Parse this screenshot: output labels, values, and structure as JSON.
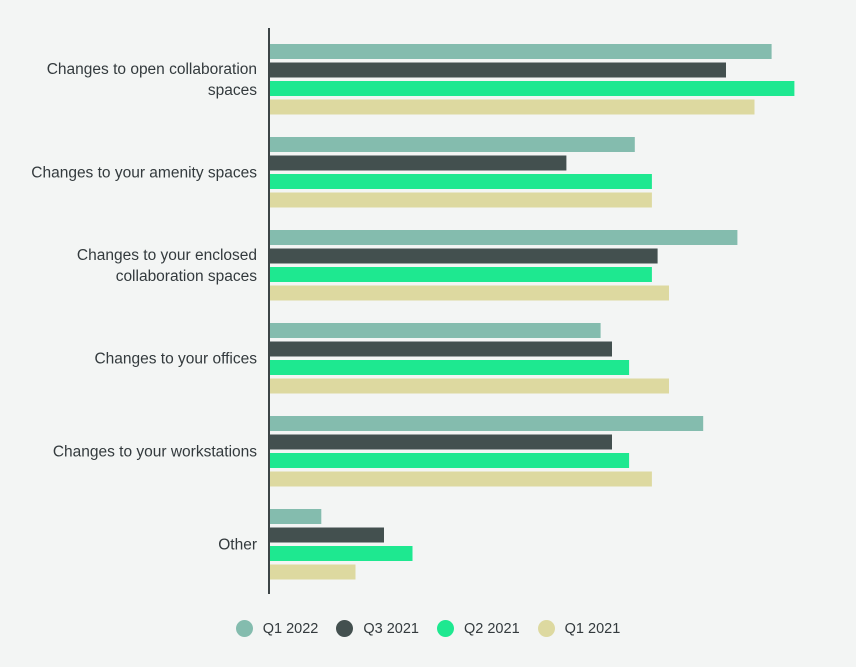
{
  "chart_data": {
    "type": "bar",
    "orientation": "horizontal",
    "categories": [
      [
        "Changes to open collaboration",
        "spaces"
      ],
      [
        "Changes to your amenity spaces"
      ],
      [
        "Changes to your enclosed",
        "collaboration spaces"
      ],
      [
        "Changes to your offices"
      ],
      [
        "Changes to your workstations"
      ],
      [
        "Other"
      ]
    ],
    "series": [
      {
        "name": "Q1 2022",
        "color": "#84bcae",
        "values": [
          88,
          64,
          82,
          58,
          76,
          9
        ]
      },
      {
        "name": "Q3 2021",
        "color": "#43504f",
        "values": [
          80,
          52,
          68,
          60,
          60,
          20
        ]
      },
      {
        "name": "Q2 2021",
        "color": "#1ee890",
        "values": [
          92,
          67,
          67,
          63,
          63,
          25
        ]
      },
      {
        "name": "Q1 2021",
        "color": "#ddd9a0",
        "values": [
          85,
          67,
          70,
          70,
          67,
          15
        ]
      }
    ],
    "xlim": [
      0,
      100
    ],
    "grid": false,
    "legend_position": "bottom"
  }
}
